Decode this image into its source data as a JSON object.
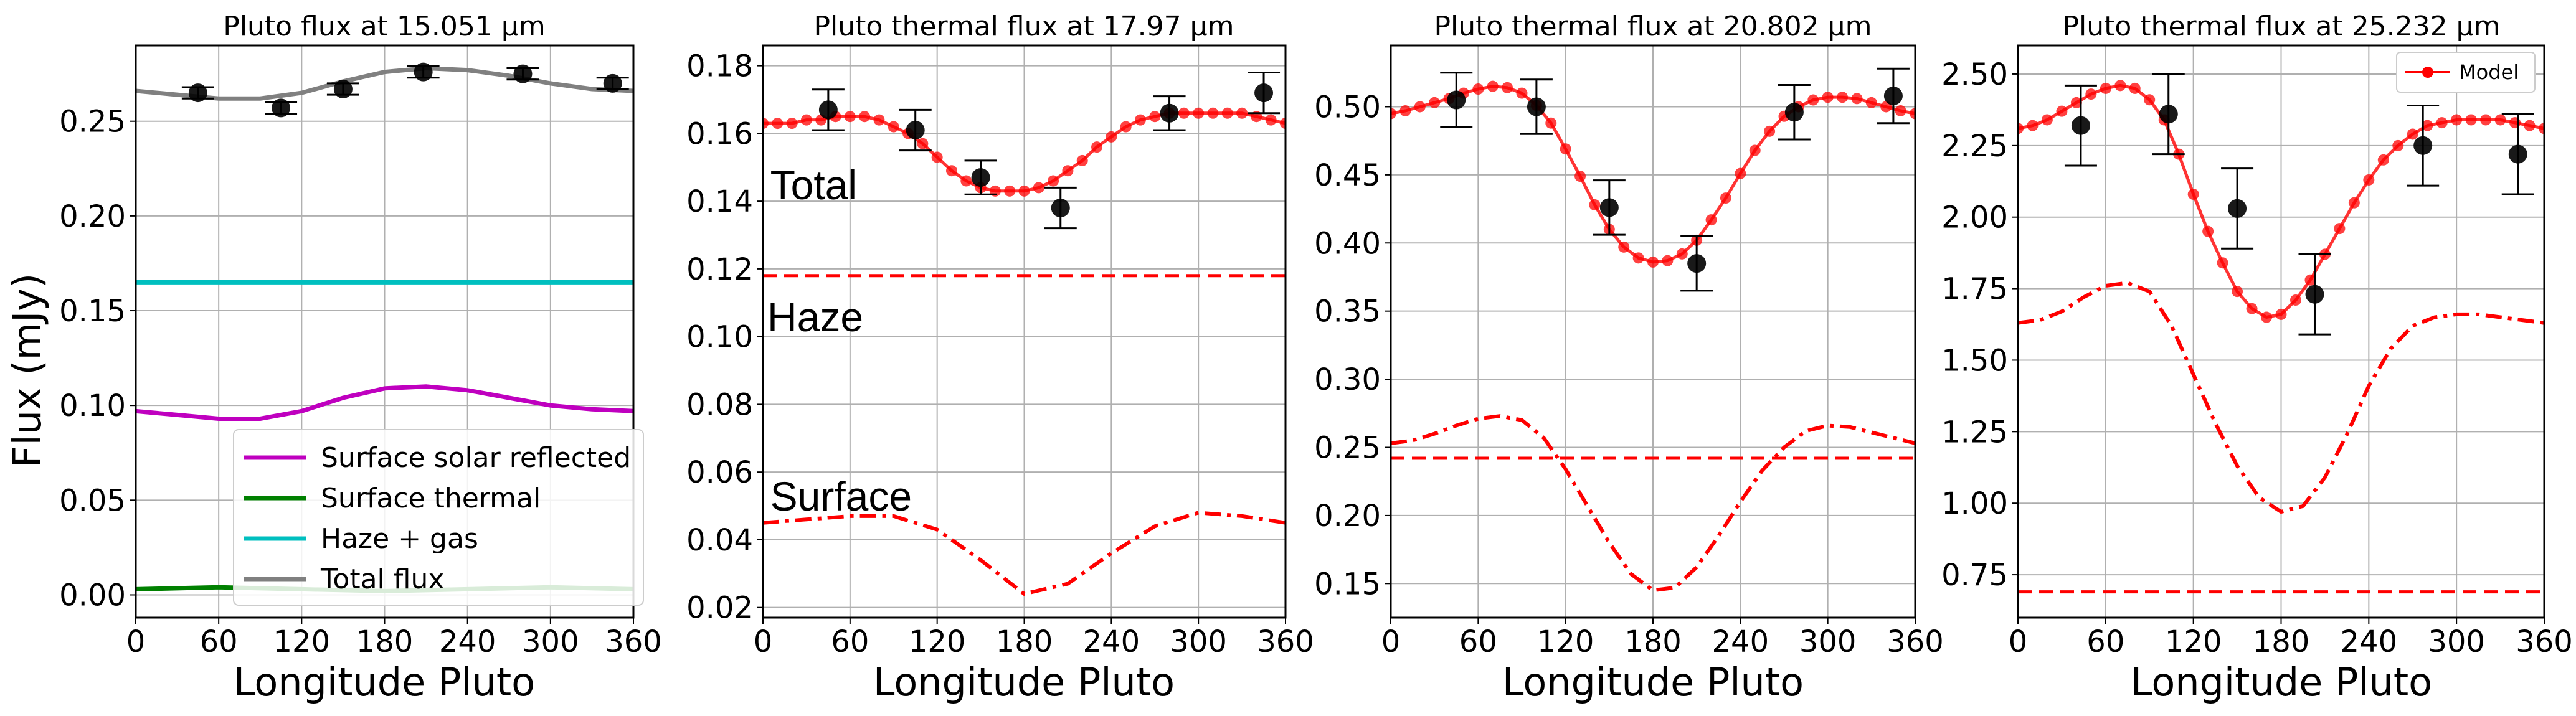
{
  "figure": {
    "ylabel": "Flux (mJy)"
  },
  "chart_data": [
    {
      "type": "line",
      "title": "Pluto flux at 15.051 μm",
      "xlabel": "Longitude Pluto",
      "ylabel": "Flux (mJy)",
      "xlim": [
        0,
        360
      ],
      "ylim": [
        -0.012,
        0.29
      ],
      "xticks": [
        "0",
        "60",
        "120",
        "180",
        "240",
        "300",
        "360"
      ],
      "yticks": [
        "0.00",
        "0.05",
        "0.10",
        "0.15",
        "0.20",
        "0.25"
      ],
      "grid": true,
      "legend": {
        "placement": "lower-right"
      },
      "series": [
        {
          "name": "Surface solar reflected",
          "color": "#bf00bf",
          "style": "solid",
          "x": [
            0,
            30,
            60,
            90,
            120,
            150,
            180,
            210,
            240,
            270,
            300,
            330,
            360
          ],
          "y": [
            0.097,
            0.095,
            0.093,
            0.093,
            0.097,
            0.104,
            0.109,
            0.11,
            0.108,
            0.104,
            0.1,
            0.098,
            0.097
          ]
        },
        {
          "name": "Surface thermal",
          "color": "#008000",
          "style": "solid",
          "x": [
            0,
            60,
            120,
            180,
            240,
            300,
            360
          ],
          "y": [
            0.003,
            0.004,
            0.003,
            0.002,
            0.003,
            0.004,
            0.003
          ]
        },
        {
          "name": "Haze + gas",
          "color": "#00bfbf",
          "style": "solid",
          "x": [
            0,
            360
          ],
          "y": [
            0.165,
            0.165
          ]
        },
        {
          "name": "Total flux",
          "color": "#808080",
          "style": "solid",
          "x": [
            0,
            30,
            60,
            90,
            120,
            150,
            180,
            210,
            240,
            270,
            300,
            330,
            360
          ],
          "y": [
            0.266,
            0.264,
            0.262,
            0.262,
            0.265,
            0.271,
            0.276,
            0.278,
            0.277,
            0.274,
            0.27,
            0.267,
            0.266
          ]
        }
      ],
      "observations": {
        "x": [
          45,
          105,
          150,
          208,
          280,
          345
        ],
        "y": [
          0.265,
          0.257,
          0.267,
          0.276,
          0.275,
          0.27
        ],
        "err": [
          0.003,
          0.003,
          0.003,
          0.003,
          0.003,
          0.003
        ]
      }
    },
    {
      "type": "line",
      "title": "Pluto thermal flux at 17.97 μm",
      "xlabel": "Longitude Pluto",
      "ylim": [
        0.017,
        0.186
      ],
      "xlim": [
        0,
        360
      ],
      "xticks": [
        "0",
        "60",
        "120",
        "180",
        "240",
        "300",
        "360"
      ],
      "yticks": [
        "0.02",
        "0.04",
        "0.06",
        "0.08",
        "0.10",
        "0.12",
        "0.14",
        "0.16",
        "0.18"
      ],
      "grid": true,
      "annotations": [
        {
          "text": "Total",
          "x": 5,
          "y": 0.145
        },
        {
          "text": "Haze",
          "x": 3,
          "y": 0.106
        },
        {
          "text": "Surface",
          "x": 5,
          "y": 0.053
        }
      ],
      "model": {
        "x": [
          0,
          10,
          20,
          30,
          40,
          50,
          60,
          70,
          80,
          90,
          100,
          110,
          120,
          130,
          140,
          150,
          160,
          170,
          180,
          190,
          200,
          210,
          220,
          230,
          240,
          250,
          260,
          270,
          280,
          290,
          300,
          310,
          320,
          330,
          340,
          350,
          360
        ],
        "y": [
          0.163,
          0.163,
          0.163,
          0.164,
          0.164,
          0.165,
          0.165,
          0.165,
          0.164,
          0.162,
          0.16,
          0.157,
          0.153,
          0.149,
          0.146,
          0.144,
          0.143,
          0.143,
          0.143,
          0.144,
          0.146,
          0.149,
          0.152,
          0.156,
          0.159,
          0.162,
          0.164,
          0.165,
          0.166,
          0.166,
          0.166,
          0.166,
          0.166,
          0.166,
          0.165,
          0.164,
          0.163
        ]
      },
      "haze": {
        "y": 0.118
      },
      "surface": {
        "x": [
          0,
          30,
          60,
          90,
          120,
          150,
          180,
          210,
          240,
          270,
          300,
          330,
          360
        ],
        "y": [
          0.045,
          0.046,
          0.047,
          0.047,
          0.043,
          0.034,
          0.024,
          0.027,
          0.036,
          0.044,
          0.048,
          0.047,
          0.045
        ]
      },
      "observations": {
        "x": [
          45,
          105,
          150,
          205,
          280,
          345
        ],
        "y": [
          0.167,
          0.161,
          0.147,
          0.138,
          0.166,
          0.172
        ],
        "err": [
          0.006,
          0.006,
          0.005,
          0.006,
          0.005,
          0.006
        ]
      }
    },
    {
      "type": "line",
      "title": "Pluto thermal flux at 20.802 μm",
      "xlabel": "Longitude Pluto",
      "xlim": [
        0,
        360
      ],
      "ylim": [
        0.125,
        0.545
      ],
      "xticks": [
        "0",
        "60",
        "120",
        "180",
        "240",
        "300",
        "360"
      ],
      "yticks": [
        "0.15",
        "0.20",
        "0.25",
        "0.30",
        "0.35",
        "0.40",
        "0.45",
        "0.50"
      ],
      "grid": true,
      "model": {
        "x": [
          0,
          10,
          20,
          30,
          40,
          50,
          60,
          70,
          80,
          90,
          100,
          110,
          120,
          130,
          140,
          150,
          160,
          170,
          180,
          190,
          200,
          210,
          220,
          230,
          240,
          250,
          260,
          270,
          280,
          290,
          300,
          310,
          320,
          330,
          340,
          350,
          360
        ],
        "y": [
          0.495,
          0.497,
          0.5,
          0.503,
          0.506,
          0.51,
          0.513,
          0.515,
          0.514,
          0.51,
          0.501,
          0.488,
          0.469,
          0.449,
          0.428,
          0.41,
          0.397,
          0.389,
          0.386,
          0.387,
          0.392,
          0.402,
          0.417,
          0.433,
          0.451,
          0.468,
          0.482,
          0.493,
          0.5,
          0.505,
          0.507,
          0.507,
          0.506,
          0.503,
          0.5,
          0.497,
          0.495
        ]
      },
      "haze": {
        "y": 0.242
      },
      "surface": {
        "x": [
          0,
          15,
          30,
          45,
          60,
          75,
          90,
          105,
          120,
          135,
          150,
          165,
          180,
          195,
          210,
          225,
          240,
          255,
          270,
          285,
          300,
          315,
          330,
          345,
          360
        ],
        "y": [
          0.253,
          0.255,
          0.26,
          0.266,
          0.271,
          0.273,
          0.27,
          0.257,
          0.234,
          0.207,
          0.18,
          0.157,
          0.145,
          0.147,
          0.162,
          0.185,
          0.21,
          0.233,
          0.25,
          0.262,
          0.266,
          0.265,
          0.261,
          0.257,
          0.253
        ]
      },
      "observations": {
        "x": [
          45,
          100,
          150,
          210,
          277,
          345
        ],
        "y": [
          0.505,
          0.5,
          0.426,
          0.385,
          0.496,
          0.508
        ],
        "err": [
          0.02,
          0.02,
          0.02,
          0.02,
          0.02,
          0.02
        ]
      }
    },
    {
      "type": "line",
      "title": "Pluto thermal flux at 25.232 μm",
      "xlabel": "Longitude Pluto",
      "xlim": [
        0,
        360
      ],
      "ylim": [
        0.6,
        2.6
      ],
      "xticks": [
        "0",
        "60",
        "120",
        "180",
        "240",
        "300",
        "360"
      ],
      "yticks": [
        "0.75",
        "1.00",
        "1.25",
        "1.50",
        "1.75",
        "2.00",
        "2.25",
        "2.50"
      ],
      "grid": true,
      "legend": {
        "placement": "top-right",
        "entries": [
          "Model"
        ]
      },
      "model": {
        "name": "Model",
        "x": [
          0,
          10,
          20,
          30,
          40,
          50,
          60,
          70,
          80,
          90,
          100,
          110,
          120,
          130,
          140,
          150,
          160,
          170,
          180,
          190,
          200,
          210,
          220,
          230,
          240,
          250,
          260,
          270,
          280,
          290,
          300,
          310,
          320,
          330,
          340,
          350,
          360
        ],
        "y": [
          2.31,
          2.32,
          2.34,
          2.37,
          2.4,
          2.43,
          2.45,
          2.46,
          2.45,
          2.41,
          2.34,
          2.22,
          2.08,
          1.95,
          1.84,
          1.74,
          1.68,
          1.65,
          1.66,
          1.71,
          1.78,
          1.87,
          1.96,
          2.05,
          2.13,
          2.2,
          2.25,
          2.29,
          2.32,
          2.33,
          2.34,
          2.34,
          2.34,
          2.34,
          2.33,
          2.32,
          2.31
        ]
      },
      "haze": {
        "y": 0.69
      },
      "surface": {
        "x": [
          0,
          15,
          30,
          45,
          60,
          75,
          90,
          105,
          120,
          135,
          150,
          165,
          180,
          195,
          210,
          225,
          240,
          255,
          270,
          285,
          300,
          315,
          330,
          345,
          360
        ],
        "y": [
          1.63,
          1.64,
          1.67,
          1.72,
          1.76,
          1.77,
          1.74,
          1.62,
          1.45,
          1.28,
          1.13,
          1.02,
          0.97,
          0.99,
          1.09,
          1.24,
          1.41,
          1.54,
          1.62,
          1.65,
          1.66,
          1.66,
          1.65,
          1.64,
          1.63
        ]
      },
      "observations": {
        "x": [
          43,
          103,
          150,
          203,
          277,
          342
        ],
        "y": [
          2.32,
          2.36,
          2.03,
          1.73,
          2.25,
          2.22
        ],
        "err": [
          0.14,
          0.14,
          0.14,
          0.14,
          0.14,
          0.14
        ]
      }
    }
  ],
  "colors": {
    "model": "#ff0000",
    "obs": "#000000",
    "grid": "#b0b0b0"
  }
}
